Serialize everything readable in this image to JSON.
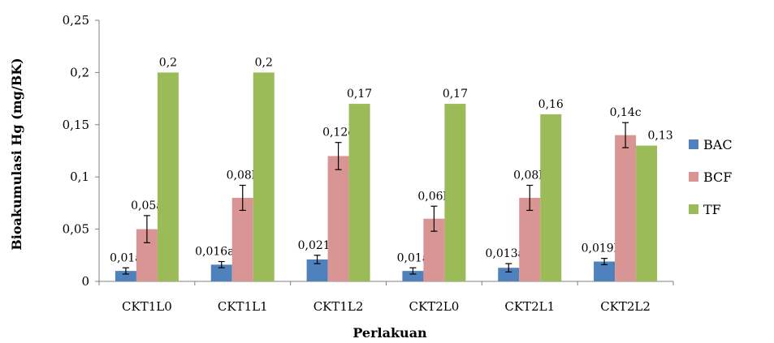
{
  "chart_data": {
    "type": "bar",
    "title": "",
    "xlabel": "Perlakuan",
    "ylabel": "Bioakumulasi Hg (mg/BK)",
    "ylim": [
      0,
      0.25
    ],
    "yticks": [
      0,
      0.05,
      0.1,
      0.15,
      0.2,
      0.25
    ],
    "ytick_labels": [
      "0",
      "0,05",
      "0,1",
      "0,15",
      "0,2",
      "0,25"
    ],
    "grid": false,
    "legend_position": "right",
    "categories": [
      "CKT1L0",
      "CKT1L1",
      "CKT1L2",
      "CKT2L0",
      "CKT2L1",
      "CKT2L2"
    ],
    "series": [
      {
        "name": "BAC",
        "color": "#4f81bd",
        "values": [
          0.01,
          0.016,
          0.021,
          0.01,
          0.013,
          0.019
        ],
        "errors": [
          0.003,
          0.003,
          0.004,
          0.003,
          0.004,
          0.003
        ],
        "labels": [
          "0,01a",
          "0,016abc",
          "0,021c",
          "0,01a",
          "0,013ab",
          "0,019bc"
        ]
      },
      {
        "name": "BCF",
        "color": "#d99594",
        "values": [
          0.05,
          0.08,
          0.12,
          0.06,
          0.08,
          0.14
        ],
        "errors": [
          0.013,
          0.012,
          0.013,
          0.012,
          0.012,
          0.012
        ],
        "labels": [
          "0,05a",
          "0,08b",
          "0,12c",
          "0,06b",
          "0,08b",
          "0,14c"
        ]
      },
      {
        "name": "TF",
        "color": "#9bbb59",
        "values": [
          0.2,
          0.2,
          0.17,
          0.17,
          0.16,
          0.13
        ],
        "errors": [
          0,
          0,
          0,
          0,
          0,
          0
        ],
        "labels": [
          "0,2",
          "0,2",
          "0,17",
          "0,17",
          "0,16",
          "0,13"
        ]
      }
    ]
  }
}
